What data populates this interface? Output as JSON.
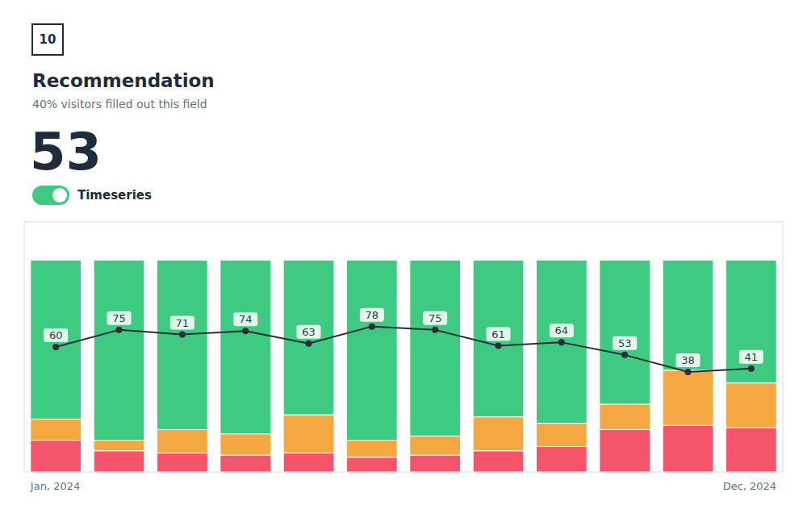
{
  "chart_data": {
    "type": "bar",
    "title": "Recommendation",
    "subtitle": "40% visitors filled out this field",
    "annotations": [
      "10",
      "53",
      "Timeseries"
    ],
    "categories": [
      "Jan, 2024",
      null,
      null,
      null,
      null,
      null,
      null,
      null,
      null,
      null,
      null,
      "Dec, 2024"
    ],
    "stacked": true,
    "series": [
      {
        "color": "#f5546a",
        "values": [
          15,
          10,
          9,
          8,
          9,
          7,
          8,
          10,
          12,
          20,
          22,
          21
        ]
      },
      {
        "color": "#f5a742",
        "values": [
          10,
          5,
          11,
          10,
          18,
          8,
          9,
          16,
          11,
          12,
          26,
          21
        ]
      },
      {
        "color": "#3ecb81",
        "values": [
          75,
          85,
          80,
          82,
          73,
          85,
          83,
          74,
          77,
          68,
          52,
          58
        ]
      },
      {
        "type": "line",
        "axis": "y2",
        "color": "#2d2d3a",
        "marker": "circle",
        "data_labels": true,
        "values": [
          60,
          75,
          71,
          74,
          63,
          78,
          75,
          61,
          64,
          53,
          38,
          41
        ]
      }
    ],
    "ylim": [
      0,
      118
    ],
    "y2lim": [
      -50,
      170
    ],
    "tick_labels": false,
    "grid": false
  }
}
